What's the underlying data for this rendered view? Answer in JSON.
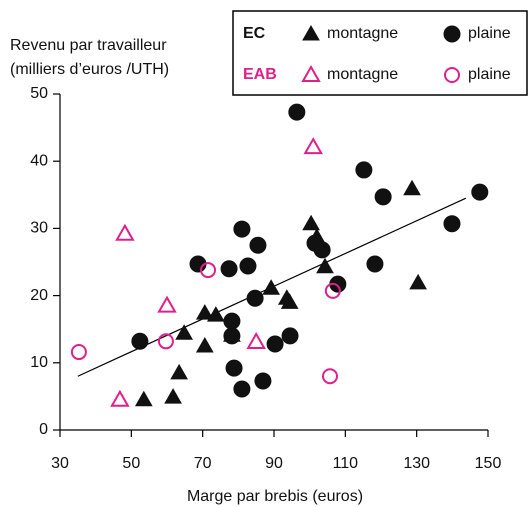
{
  "chart_data": {
    "type": "scatter",
    "ylabel": [
      "Revenu par travailleur",
      "(milliers d’euros /UTH)"
    ],
    "xlabel": "Marge par brebis (euros)",
    "xlim": [
      30,
      150
    ],
    "xticks": [
      30,
      50,
      70,
      90,
      110,
      130,
      150
    ],
    "ylim": [
      0,
      50
    ],
    "yticks": [
      0,
      10,
      20,
      30,
      40,
      50
    ],
    "series": [
      {
        "group": "EC",
        "name": "montagne",
        "color": "#111111",
        "marker": "triangle",
        "filled": true,
        "x": [
          53.5,
          61.7,
          63.4,
          64.8,
          70.6,
          70.6,
          73.7,
          78.2,
          89.2,
          93.6,
          94.4,
          100.4,
          102,
          104.3,
          128.7,
          130.4
        ],
        "y": [
          4.5,
          4.9,
          8.5,
          14.4,
          12.5,
          17.4,
          17.1,
          14.1,
          21.1,
          19.6,
          19.0,
          30.7,
          28.7,
          24.3,
          35.9,
          21.9
        ]
      },
      {
        "group": "EC",
        "name": "plaine",
        "color": "#111111",
        "marker": "circle",
        "filled": true,
        "x": [
          52.4,
          68.7,
          77.4,
          78.2,
          78.2,
          78.8,
          81.0,
          81.0,
          82.7,
          85.5,
          84.7,
          86.9,
          90.3,
          94.5,
          96.4,
          101.5,
          103.5,
          107.9,
          115.2,
          118.3,
          120.6,
          139.9,
          147.7
        ],
        "y": [
          13.2,
          24.7,
          24.0,
          16.2,
          14.0,
          9.2,
          6.1,
          29.9,
          24.4,
          27.5,
          19.6,
          7.3,
          12.8,
          14.0,
          47.3,
          27.8,
          26.8,
          21.7,
          38.7,
          24.7,
          34.7,
          30.7,
          35.4
        ]
      },
      {
        "group": "EAB",
        "name": "montagne",
        "color": "#e0208a",
        "marker": "triangle",
        "filled": false,
        "x": [
          48.2,
          46.8,
          60.0,
          85.0,
          101
        ],
        "y": [
          29.2,
          4.5,
          18.5,
          13.1,
          42.1
        ]
      },
      {
        "group": "EAB",
        "name": "plaine",
        "color": "#e0208a",
        "marker": "circle",
        "filled": false,
        "x": [
          35.3,
          59.7,
          71.5,
          106.5,
          105.7
        ],
        "y": [
          11.6,
          13.2,
          23.8,
          20.7,
          8.0
        ]
      }
    ],
    "trend_line": {
      "x": [
        35,
        143.8
      ],
      "y": [
        8,
        34.5
      ]
    }
  }
}
